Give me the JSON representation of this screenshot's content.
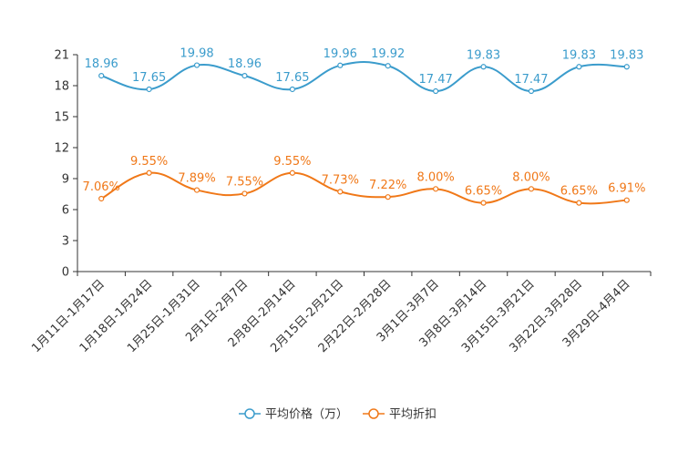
{
  "chart_data": {
    "type": "line",
    "categories": [
      "1月11日-1月17日",
      "1月18日-1月24日",
      "1月25日-1月31日",
      "2月1日-2月7日",
      "2月8日-2月14日",
      "2月15日-2月21日",
      "2月22日-2月28日",
      "3月1日-3月7日",
      "3月8日-3月14日",
      "3月15日-3月21日",
      "3月22日-3月28日",
      "3月29日-4月4日"
    ],
    "ylim": [
      0,
      21
    ],
    "yticks": [
      0,
      3,
      6,
      9,
      12,
      15,
      18,
      21
    ],
    "series": [
      {
        "name": "平均价格（万）",
        "color": "#3b9ccc",
        "values": [
          18.96,
          17.65,
          19.98,
          18.96,
          17.65,
          19.96,
          19.92,
          17.47,
          19.83,
          17.47,
          19.83,
          19.83
        ],
        "labels": [
          "18.96",
          "17.65",
          "19.98",
          "18.96",
          "17.65",
          "19.96",
          "19.92",
          "17.47",
          "19.83",
          "17.47",
          "19.83",
          "19.83"
        ]
      },
      {
        "name": "平均折扣",
        "color": "#f07818",
        "values": [
          7.06,
          9.55,
          7.89,
          7.55,
          9.55,
          7.73,
          7.22,
          8.0,
          6.65,
          8.0,
          6.65,
          6.91
        ],
        "labels": [
          "7.06%",
          "9.55%",
          "7.89%",
          "7.55%",
          "9.55%",
          "7.73%",
          "7.22%",
          "8.00%",
          "6.65%",
          "8.00%",
          "6.65%",
          "6.91%"
        ]
      }
    ],
    "legend_position": "bottom"
  }
}
